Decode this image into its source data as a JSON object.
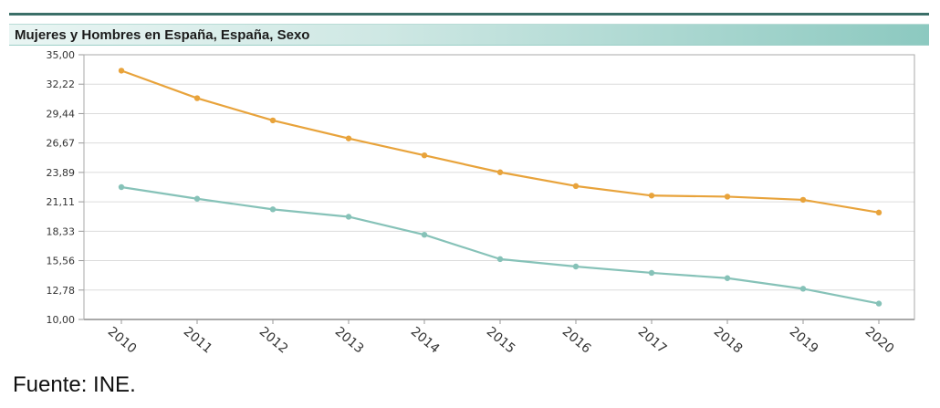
{
  "header": {
    "title": "Mujeres y Hombres en España, España, Sexo"
  },
  "footer": {
    "source": "Fuente: INE."
  },
  "chart_data": {
    "type": "line",
    "title": "Mujeres y Hombres en España, España, Sexo",
    "xlabel": "",
    "ylabel": "",
    "x": [
      "2010",
      "2011",
      "2012",
      "2013",
      "2014",
      "2015",
      "2016",
      "2017",
      "2018",
      "2019",
      "2020"
    ],
    "ylim": [
      10,
      35
    ],
    "y_ticks": [
      "35,00",
      "32,22",
      "29,44",
      "26,67",
      "23,89",
      "21,11",
      "18,33",
      "15,56",
      "12,78",
      "10,00"
    ],
    "grid": true,
    "legend": "none",
    "series": [
      {
        "color": "#e8a33b",
        "values": [
          33.5,
          30.9,
          28.8,
          27.1,
          25.5,
          23.9,
          22.6,
          21.7,
          21.6,
          21.3,
          20.1
        ]
      },
      {
        "color": "#86c2b8",
        "values": [
          22.5,
          21.4,
          20.4,
          19.7,
          18.0,
          15.7,
          15.0,
          14.4,
          13.9,
          12.9,
          11.5
        ]
      }
    ]
  }
}
